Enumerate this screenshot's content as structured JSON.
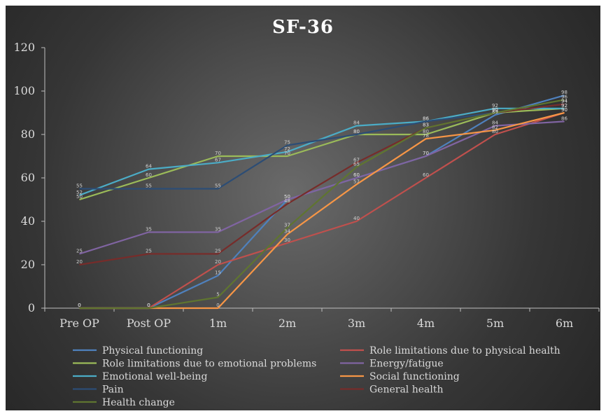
{
  "chart_data": {
    "type": "line",
    "title": "SF-36",
    "categories": [
      "Pre OP",
      "Post OP",
      "1m",
      "2m",
      "3m",
      "4m",
      "5m",
      "6m"
    ],
    "ylim": [
      0,
      120
    ],
    "yticks": [
      0,
      20,
      40,
      60,
      80,
      100,
      120
    ],
    "grid": false,
    "legend_position": "bottom",
    "series": [
      {
        "name": "Physical functioning",
        "color": "#4f81bd",
        "values": [
          0,
          0,
          15,
          50,
          60,
          70,
          89,
          98
        ]
      },
      {
        "name": "Role limitations due to physical health",
        "color": "#c0504d",
        "values": [
          0,
          0,
          20,
          30,
          40,
          60,
          80,
          90
        ]
      },
      {
        "name": "Role limitations due to emotional problems",
        "color": "#9bbb59",
        "values": [
          50,
          60,
          70,
          70,
          80,
          80,
          90,
          92
        ]
      },
      {
        "name": "Energy/fatigue",
        "color": "#8064a2",
        "values": [
          25,
          35,
          35,
          50,
          60,
          70,
          84,
          86
        ]
      },
      {
        "name": "Emotional well-being",
        "color": "#4bacc6",
        "values": [
          52,
          64,
          67,
          72,
          84,
          86,
          92,
          92
        ]
      },
      {
        "name": "Social functioning",
        "color": "#f79646",
        "values": [
          0,
          0,
          0,
          34,
          57,
          78,
          82,
          90
        ]
      },
      {
        "name": "Pain",
        "color": "#2c4d75",
        "values": [
          55,
          55,
          55,
          75,
          80,
          86,
          90,
          94
        ]
      },
      {
        "name": "General health",
        "color": "#772c2a",
        "values": [
          20,
          25,
          25,
          48,
          67,
          83,
          90,
          94
        ]
      },
      {
        "name": "Health change",
        "color": "#5f7530",
        "values": [
          0,
          0,
          5,
          37,
          65,
          83,
          90,
          96
        ]
      }
    ]
  }
}
